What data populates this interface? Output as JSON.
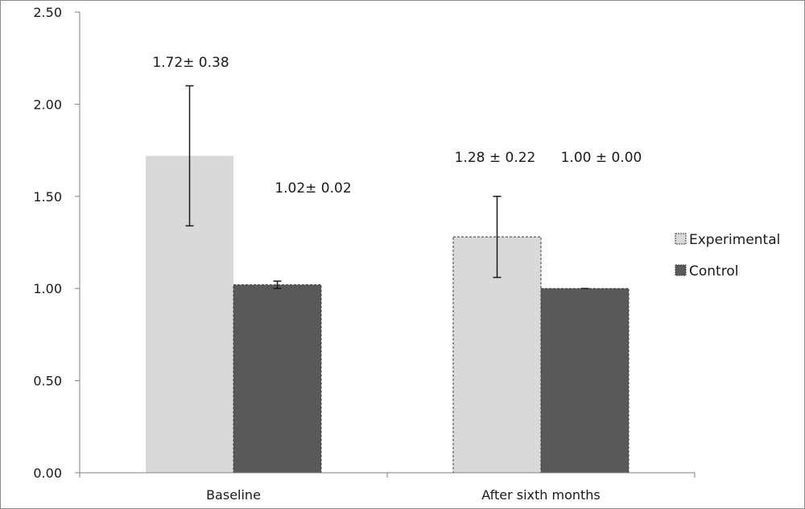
{
  "chart_data": {
    "type": "bar",
    "title": "",
    "xlabel": "",
    "ylabel": "",
    "ylim": [
      0,
      2.5
    ],
    "y_ticks": [
      "0.00",
      "0.50",
      "1.00",
      "1.50",
      "2.00",
      "2.50"
    ],
    "y_tick_values": [
      0,
      0.5,
      1.0,
      1.5,
      2.0,
      2.5
    ],
    "categories": [
      "Baseline",
      "After sixth months"
    ],
    "series": [
      {
        "name": "Experimental",
        "values": [
          1.72,
          1.28
        ],
        "errors": [
          0.38,
          0.22
        ],
        "labels": [
          "1.72± 0.38",
          "1.28 ± 0.22"
        ],
        "color": "#d9d9d9"
      },
      {
        "name": "Control",
        "values": [
          1.02,
          1.0
        ],
        "errors": [
          0.02,
          0.0
        ],
        "labels": [
          "1.02± 0.02",
          "1.00 ± 0.00"
        ],
        "color": "#595959"
      }
    ],
    "legend_position": "right",
    "grid": false
  }
}
